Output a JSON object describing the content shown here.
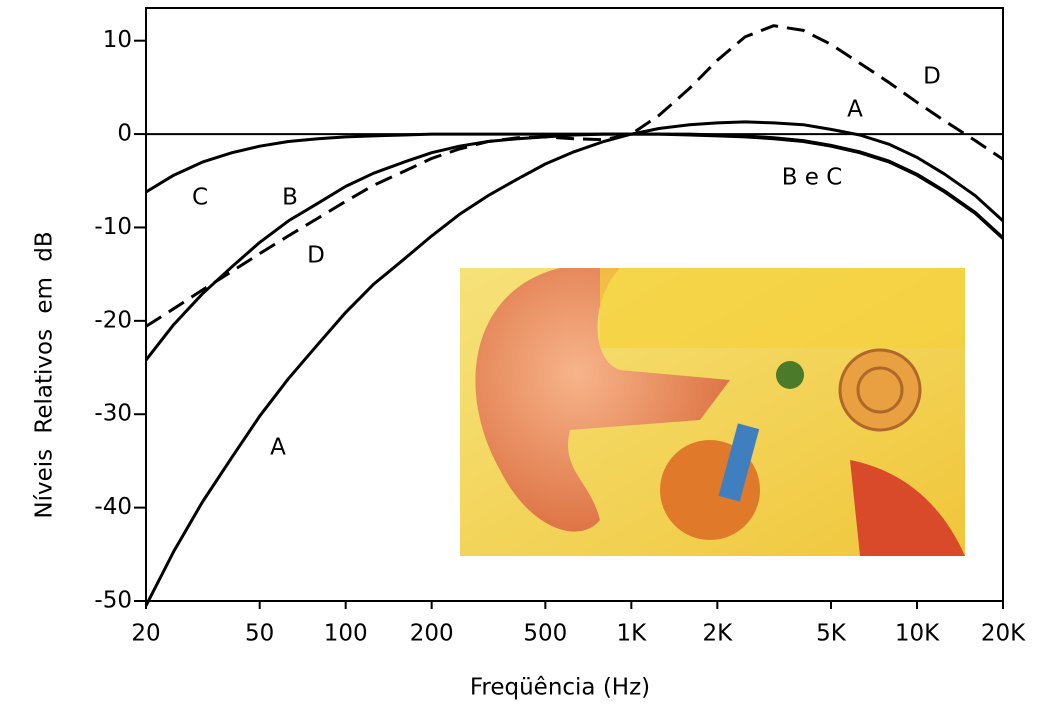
{
  "chart_data": {
    "type": "line",
    "x_label": "Freqüência (Hz)",
    "y_label": "Níveis Relativos em dB",
    "log_x": true,
    "zero_line": true,
    "x": [
      20,
      25,
      31.5,
      40,
      50,
      63,
      80,
      100,
      125,
      160,
      200,
      250,
      315,
      400,
      500,
      630,
      800,
      1000,
      1250,
      1600,
      2000,
      2500,
      3150,
      4000,
      5000,
      6300,
      8000,
      10000,
      12500,
      16000,
      20000
    ],
    "series": [
      {
        "name": "A",
        "color": "#000000",
        "dashed": false,
        "values": [
          -50.5,
          -44.7,
          -39.4,
          -34.6,
          -30.2,
          -26.2,
          -22.5,
          -19.1,
          -16.1,
          -13.4,
          -10.9,
          -8.6,
          -6.6,
          -4.8,
          -3.2,
          -1.9,
          -0.8,
          0,
          0.6,
          1.0,
          1.2,
          1.3,
          1.2,
          1.0,
          0.5,
          -0.1,
          -1.1,
          -2.5,
          -4.3,
          -6.6,
          -9.3
        ]
      },
      {
        "name": "B",
        "color": "#000000",
        "dashed": false,
        "values": [
          -24.2,
          -20.4,
          -17.1,
          -14.2,
          -11.6,
          -9.3,
          -7.4,
          -5.6,
          -4.2,
          -3.0,
          -2.0,
          -1.3,
          -0.8,
          -0.5,
          -0.3,
          -0.1,
          0,
          0,
          0,
          0,
          -0.1,
          -0.2,
          -0.4,
          -0.7,
          -1.2,
          -1.9,
          -2.9,
          -4.3,
          -6.1,
          -8.4,
          -11.1
        ]
      },
      {
        "name": "C",
        "color": "#000000",
        "dashed": false,
        "values": [
          -6.2,
          -4.4,
          -3.0,
          -2.0,
          -1.3,
          -0.8,
          -0.5,
          -0.3,
          -0.2,
          -0.1,
          0,
          0,
          0,
          0,
          0,
          0,
          0,
          0,
          0,
          -0.1,
          -0.2,
          -0.3,
          -0.5,
          -0.8,
          -1.3,
          -2.0,
          -3.0,
          -4.4,
          -6.2,
          -8.5,
          -11.2
        ]
      },
      {
        "name": "D",
        "color": "#000000",
        "dashed": true,
        "values": [
          -20.6,
          -18.7,
          -16.7,
          -14.7,
          -12.8,
          -10.9,
          -9.0,
          -7.2,
          -5.5,
          -4.0,
          -2.6,
          -1.6,
          -0.8,
          -0.4,
          -0.3,
          -0.5,
          -0.6,
          0,
          2.0,
          4.9,
          7.9,
          10.4,
          11.6,
          11.1,
          9.6,
          7.6,
          5.5,
          3.4,
          1.4,
          -0.7,
          -2.7
        ]
      }
    ],
    "annotations": [
      "C",
      "B",
      "D",
      "A",
      "A",
      "D",
      "B e C"
    ],
    "xlim": [
      20,
      20000
    ],
    "xticks": [
      20,
      50,
      100,
      200,
      500,
      {
        "value": 1000,
        "label": "1K"
      },
      {
        "value": 2000,
        "label": "2K"
      },
      {
        "value": 5000,
        "label": "5K"
      },
      {
        "value": 10000,
        "label": "10K"
      },
      {
        "value": 20000,
        "label": "20K"
      }
    ],
    "ylim": [
      -50,
      13.5
    ],
    "yticks": [
      10,
      0,
      -10,
      -20,
      -30,
      -40,
      -50
    ]
  }
}
